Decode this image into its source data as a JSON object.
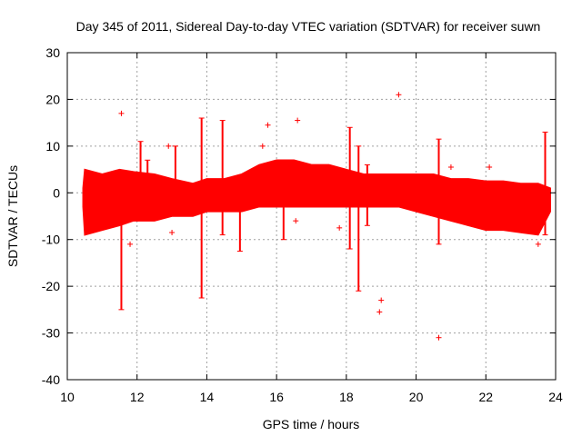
{
  "chart_data": {
    "type": "scatter",
    "title": "Day 345 of 2011, Sidereal Day-to-day VTEC variation (SDTVAR) for receiver suwn",
    "xlabel": "GPS time / hours",
    "ylabel": "SDTVAR / TECUs",
    "xlim": [
      10,
      24
    ],
    "ylim": [
      -40,
      30
    ],
    "xticks": [
      10,
      12,
      14,
      16,
      18,
      20,
      22,
      24
    ],
    "yticks": [
      -40,
      -30,
      -20,
      -10,
      0,
      10,
      20,
      30
    ],
    "xtick_labels": [
      "10",
      "12",
      "14",
      "16",
      "18",
      "20",
      "22",
      "24"
    ],
    "ytick_labels": [
      "-40",
      "-30",
      "-20",
      "-10",
      "0",
      "10",
      "20",
      "30"
    ],
    "grid": true,
    "marker": "plus",
    "color": "#ff0000",
    "band": {
      "x": [
        10.45,
        10.5,
        11.0,
        11.5,
        11.9,
        12.5,
        13.0,
        13.6,
        14.0,
        14.5,
        15.0,
        15.5,
        16.0,
        16.5,
        17.0,
        17.5,
        18.0,
        18.5,
        19.0,
        19.5,
        20.0,
        20.5,
        21.0,
        21.5,
        22.0,
        22.5,
        23.0,
        23.5,
        23.85
      ],
      "upper": [
        1,
        5,
        4,
        5,
        4.5,
        4,
        3,
        2,
        3,
        3,
        4,
        6,
        7,
        7,
        6,
        6,
        5,
        4,
        4,
        4,
        4,
        4,
        3,
        3,
        2.5,
        2.5,
        2,
        2,
        1
      ],
      "lower": [
        -3,
        -9,
        -8,
        -7,
        -6,
        -6,
        -5,
        -5,
        -4,
        -4,
        -4,
        -3,
        -3,
        -3,
        -3,
        -3,
        -3,
        -3,
        -3,
        -3,
        -4,
        -5,
        -6,
        -7,
        -8,
        -8,
        -8.5,
        -9,
        -4
      ]
    },
    "spikes": [
      {
        "x": 11.55,
        "low": -25,
        "high": 4
      },
      {
        "x": 12.1,
        "low": -5,
        "high": 11
      },
      {
        "x": 12.3,
        "low": -5,
        "high": 7
      },
      {
        "x": 13.1,
        "low": -3,
        "high": 10
      },
      {
        "x": 13.85,
        "low": -22.5,
        "high": 16
      },
      {
        "x": 14.45,
        "low": -9,
        "high": 15.5
      },
      {
        "x": 14.95,
        "low": -12.5,
        "high": 3
      },
      {
        "x": 16.2,
        "low": -10,
        "high": 4
      },
      {
        "x": 18.1,
        "low": -12,
        "high": 14
      },
      {
        "x": 18.35,
        "low": -21,
        "high": 10
      },
      {
        "x": 18.6,
        "low": -7,
        "high": 6
      },
      {
        "x": 20.65,
        "low": -11,
        "high": 11.5
      },
      {
        "x": 23.7,
        "low": -9,
        "high": 13
      }
    ],
    "outliers": [
      {
        "x": 11.55,
        "y": 17
      },
      {
        "x": 11.8,
        "y": -11
      },
      {
        "x": 13.0,
        "y": -8.5
      },
      {
        "x": 12.9,
        "y": 10
      },
      {
        "x": 15.75,
        "y": 14.5
      },
      {
        "x": 15.6,
        "y": 10
      },
      {
        "x": 16.6,
        "y": 15.5
      },
      {
        "x": 16.55,
        "y": -6
      },
      {
        "x": 17.8,
        "y": -7.5
      },
      {
        "x": 18.95,
        "y": -25.5
      },
      {
        "x": 19.0,
        "y": -23
      },
      {
        "x": 19.5,
        "y": 21
      },
      {
        "x": 20.65,
        "y": -31
      },
      {
        "x": 21.0,
        "y": 5.5
      },
      {
        "x": 22.1,
        "y": 5.5
      },
      {
        "x": 23.5,
        "y": -11
      }
    ]
  }
}
